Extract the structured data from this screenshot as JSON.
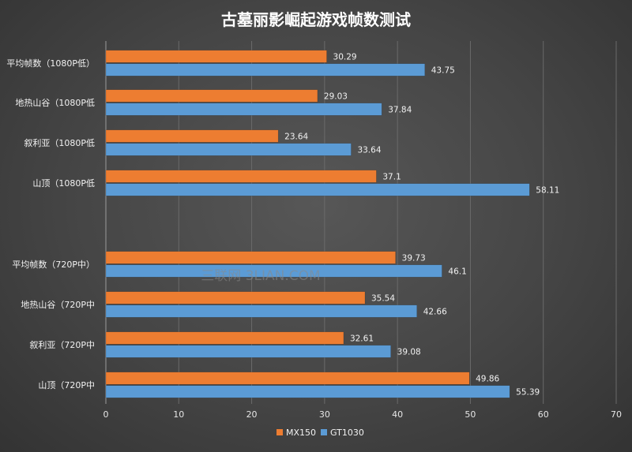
{
  "chart_data": {
    "type": "bar",
    "orientation": "horizontal",
    "title": "古墓丽影崛起游戏帧数测试",
    "categories": [
      "平均帧数（1080P低）",
      "地热山谷（1080P低",
      "叙利亚（1080P低",
      "山顶（1080P低",
      "平均帧数（720P中）",
      "地热山谷（720P中",
      "叙利亚（720P中",
      "山顶（720P中"
    ],
    "series": [
      {
        "name": "MX150",
        "color": "#ed7d31",
        "values": [
          30.29,
          29.03,
          23.64,
          37.1,
          39.73,
          35.54,
          32.61,
          49.86
        ]
      },
      {
        "name": "GT1030",
        "color": "#5b9bd5",
        "values": [
          43.75,
          37.84,
          33.64,
          58.11,
          46.1,
          42.66,
          39.08,
          55.39
        ]
      }
    ],
    "value_labels": {
      "MX150": [
        "30.29",
        "29.03",
        "23.64",
        "37.1",
        "39.73",
        "35.54",
        "32.61",
        "49.86"
      ],
      "GT1030": [
        "43.75",
        "37.84",
        "33.64",
        "58.11",
        "46.1",
        "42.66",
        "39.08",
        "55.39"
      ]
    },
    "xlim": [
      0,
      70
    ],
    "x_ticks": [
      0,
      10,
      20,
      30,
      40,
      50,
      60,
      70
    ],
    "grid": true,
    "legend": "bottom",
    "xlabel": "",
    "ylabel": ""
  },
  "watermark": "三联网 3LIAN.COM"
}
